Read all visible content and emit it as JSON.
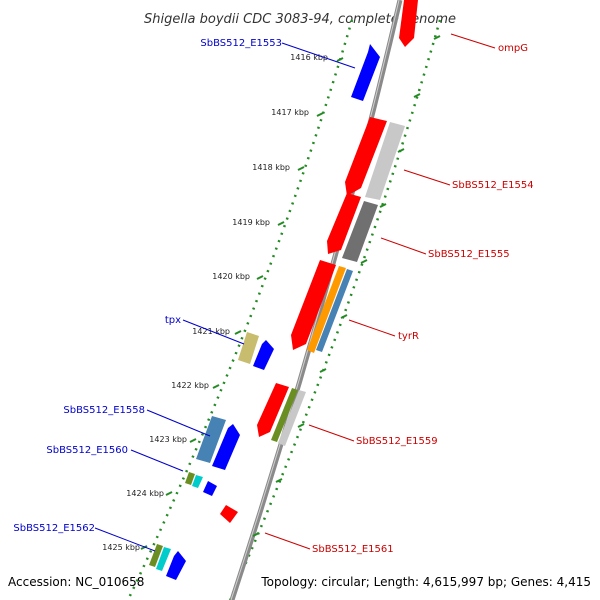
{
  "title": "Shigella boydii CDC 3083-94, complete genome",
  "footer": {
    "accession": "Accession: NC_010658",
    "stats": "Topology: circular; Length: 4,615,997 bp; Genes: 4,415"
  },
  "colors": {
    "backbone": "#8a8a8a",
    "dotted_track": "#228b22",
    "left_label": "#0000cc",
    "right_label": "#cc0000",
    "gene_red": "#ff0000",
    "gene_blue": "#0000ff",
    "gene_gray": "#c8c8c8",
    "gene_darkgray": "#707070",
    "gene_orange": "#ff9900",
    "gene_steelblue": "#4682b4",
    "gene_khaki": "#c8bc6e",
    "gene_olive": "#6b8e23",
    "gene_cyan": "#00cccc"
  },
  "ticks": [
    {
      "label": "1416 kbp"
    },
    {
      "label": "1417 kbp"
    },
    {
      "label": "1418 kbp"
    },
    {
      "label": "1419 kbp"
    },
    {
      "label": "1420 kbp"
    },
    {
      "label": "1421 kbp"
    },
    {
      "label": "1422 kbp"
    },
    {
      "label": "1423 kbp"
    },
    {
      "label": "1424 kbp"
    },
    {
      "label": "1425 kbp"
    }
  ],
  "gene_labels_left": [
    {
      "text": "SbBS512_E1553"
    },
    {
      "text": "tpx"
    },
    {
      "text": "SbBS512_E1558"
    },
    {
      "text": "SbBS512_E1560"
    },
    {
      "text": "SbBS512_E1562"
    }
  ],
  "gene_labels_right": [
    {
      "text": "ompG"
    },
    {
      "text": "SbBS512_E1554"
    },
    {
      "text": "SbBS512_E1555"
    },
    {
      "text": "tyrR"
    },
    {
      "text": "SbBS512_E1559"
    },
    {
      "text": "SbBS512_E1561"
    }
  ]
}
